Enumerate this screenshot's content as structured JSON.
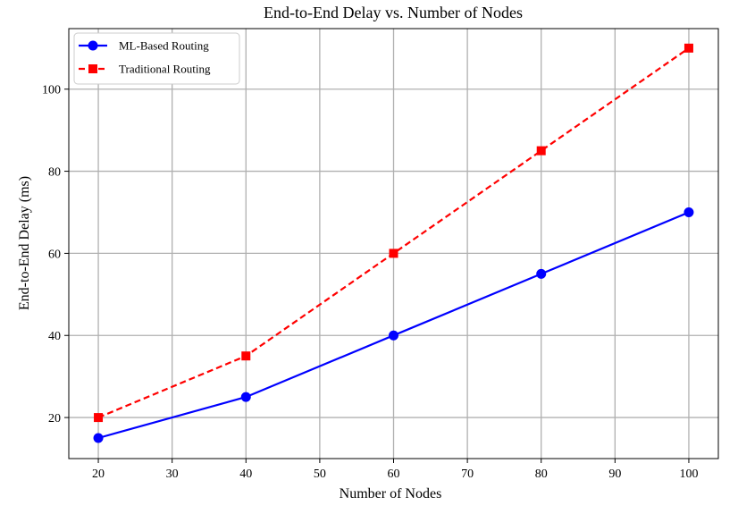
{
  "chart_data": {
    "type": "line",
    "title": "End-to-End Delay vs. Number of Nodes",
    "xlabel": "Number of Nodes",
    "ylabel": "End-to-End Delay (ms)",
    "xlim": [
      16,
      104
    ],
    "ylim": [
      10,
      114.75
    ],
    "xticks": [
      20,
      30,
      40,
      50,
      60,
      70,
      80,
      90,
      100
    ],
    "yticks": [
      20,
      40,
      60,
      80,
      100
    ],
    "grid": true,
    "legend_position": "top-left",
    "x": [
      20,
      40,
      60,
      80,
      100
    ],
    "series": [
      {
        "name": "ML-Based Routing",
        "values": [
          15,
          25,
          40,
          55,
          70
        ],
        "color": "#0000ff",
        "line_style": "solid",
        "marker": "circle"
      },
      {
        "name": "Traditional Routing",
        "values": [
          20,
          35,
          60,
          85,
          110
        ],
        "color": "#ff0000",
        "line_style": "dashed",
        "marker": "square"
      }
    ]
  }
}
